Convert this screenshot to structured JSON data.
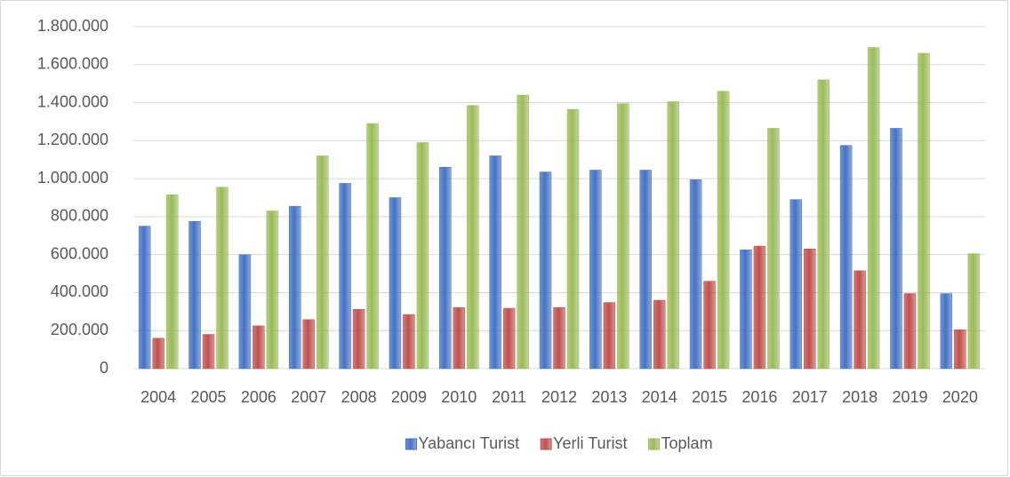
{
  "chart_data": {
    "type": "bar",
    "categories": [
      "2004",
      "2005",
      "2006",
      "2007",
      "2008",
      "2009",
      "2010",
      "2011",
      "2012",
      "2013",
      "2014",
      "2015",
      "2016",
      "2017",
      "2018",
      "2019",
      "2020"
    ],
    "series": [
      {
        "name": "Yabancı Turist",
        "color": "#4472c4",
        "values": [
          750000,
          775000,
          600000,
          855000,
          975000,
          900000,
          1060000,
          1120000,
          1035000,
          1045000,
          1045000,
          995000,
          625000,
          890000,
          1175000,
          1265000,
          395000
        ]
      },
      {
        "name": "Yerli Turist",
        "color": "#c0504d",
        "values": [
          160000,
          180000,
          225000,
          258000,
          312000,
          285000,
          322000,
          318000,
          322000,
          348000,
          360000,
          460000,
          645000,
          630000,
          515000,
          395000,
          205000
        ]
      },
      {
        "name": "Toplam",
        "color": "#9bbb59",
        "values": [
          915000,
          955000,
          830000,
          1120000,
          1290000,
          1190000,
          1385000,
          1440000,
          1365000,
          1395000,
          1405000,
          1460000,
          1265000,
          1520000,
          1690000,
          1660000,
          605000
        ]
      }
    ],
    "ylim": [
      0,
      1800000
    ],
    "yticks": [
      0,
      {
        "value": 200000,
        "label": "200.000"
      },
      {
        "value": 400000,
        "label": "400.000"
      },
      {
        "value": 600000,
        "label": "600.000"
      },
      {
        "value": 800000,
        "label": "800.000"
      },
      {
        "value": 1000000,
        "label": "1.000.000"
      },
      {
        "value": 1200000,
        "label": "1.200.000"
      },
      {
        "value": 1400000,
        "label": "1.400.000"
      },
      {
        "value": 1600000,
        "label": "1.600.000"
      },
      {
        "value": 1800000,
        "label": "1.800.000"
      }
    ],
    "grid": true,
    "legend": "bottom"
  }
}
